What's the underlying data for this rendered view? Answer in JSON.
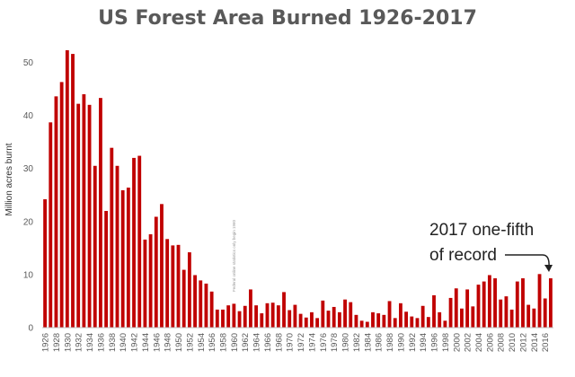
{
  "chart_data": {
    "type": "bar",
    "title": "US Forest Area Burned 1926-2017",
    "xlabel": "",
    "ylabel": "Million acres burnt",
    "ylim": [
      0,
      55
    ],
    "yticks": [
      0,
      10,
      20,
      30,
      40,
      50
    ],
    "grid": false,
    "bar_color": "#C00000",
    "categories": [
      1926,
      1927,
      1928,
      1929,
      1930,
      1931,
      1932,
      1933,
      1934,
      1935,
      1936,
      1937,
      1938,
      1939,
      1940,
      1941,
      1942,
      1943,
      1944,
      1945,
      1946,
      1947,
      1948,
      1949,
      1950,
      1951,
      1952,
      1953,
      1954,
      1955,
      1956,
      1957,
      1958,
      1959,
      1960,
      1961,
      1962,
      1963,
      1964,
      1965,
      1966,
      1967,
      1968,
      1969,
      1970,
      1971,
      1972,
      1973,
      1974,
      1975,
      1976,
      1977,
      1978,
      1979,
      1980,
      1981,
      1982,
      1983,
      1984,
      1985,
      1986,
      1987,
      1988,
      1989,
      1990,
      1991,
      1992,
      1993,
      1994,
      1995,
      1996,
      1997,
      1998,
      1999,
      2000,
      2001,
      2002,
      2003,
      2004,
      2005,
      2006,
      2007,
      2008,
      2009,
      2010,
      2011,
      2012,
      2013,
      2014,
      2015,
      2016,
      2017
    ],
    "values": [
      24.2,
      38.7,
      43.6,
      46.3,
      52.3,
      51.6,
      42.2,
      44.0,
      42.0,
      30.5,
      43.3,
      22.0,
      33.9,
      30.5,
      25.9,
      26.4,
      32.0,
      32.4,
      16.6,
      17.6,
      20.9,
      23.3,
      16.7,
      15.5,
      15.6,
      10.9,
      14.2,
      9.9,
      8.9,
      8.3,
      6.8,
      3.4,
      3.4,
      4.2,
      4.5,
      3.1,
      4.1,
      7.2,
      4.2,
      2.7,
      4.6,
      4.7,
      4.2,
      6.7,
      3.3,
      4.3,
      2.6,
      1.9,
      2.9,
      1.8,
      5.1,
      3.2,
      3.9,
      2.9,
      5.3,
      4.8,
      2.4,
      1.3,
      1.1,
      2.9,
      2.7,
      2.4,
      5.0,
      1.8,
      4.6,
      3.0,
      2.1,
      1.8,
      4.1,
      2.0,
      6.1,
      2.9,
      1.3,
      5.6,
      7.4,
      3.6,
      7.2,
      4.0,
      8.1,
      8.7,
      9.9,
      9.3,
      5.3,
      5.9,
      3.4,
      8.7,
      9.3,
      4.3,
      3.6,
      10.1,
      5.5,
      9.3
    ],
    "xtick_labels": [
      "1926",
      "1928",
      "1930",
      "1932",
      "1934",
      "1936",
      "1938",
      "1940",
      "1942",
      "1944",
      "1946",
      "1948",
      "1950",
      "1952",
      "1954",
      "1956",
      "1958",
      "1960",
      "1962",
      "1964",
      "1966",
      "1968",
      "1970",
      "1972",
      "1974",
      "1976",
      "1978",
      "1980",
      "1982",
      "1984",
      "1986",
      "1988",
      "1990",
      "1992",
      "1994",
      "1996",
      "1998",
      "2000",
      "2002",
      "2004",
      "2006",
      "2008",
      "2010",
      "2012",
      "2014",
      "2016"
    ],
    "annotation": {
      "line1": "2017 one-fifth",
      "line2": "of record"
    },
    "note": "Federal online statistics only begin 1960"
  }
}
